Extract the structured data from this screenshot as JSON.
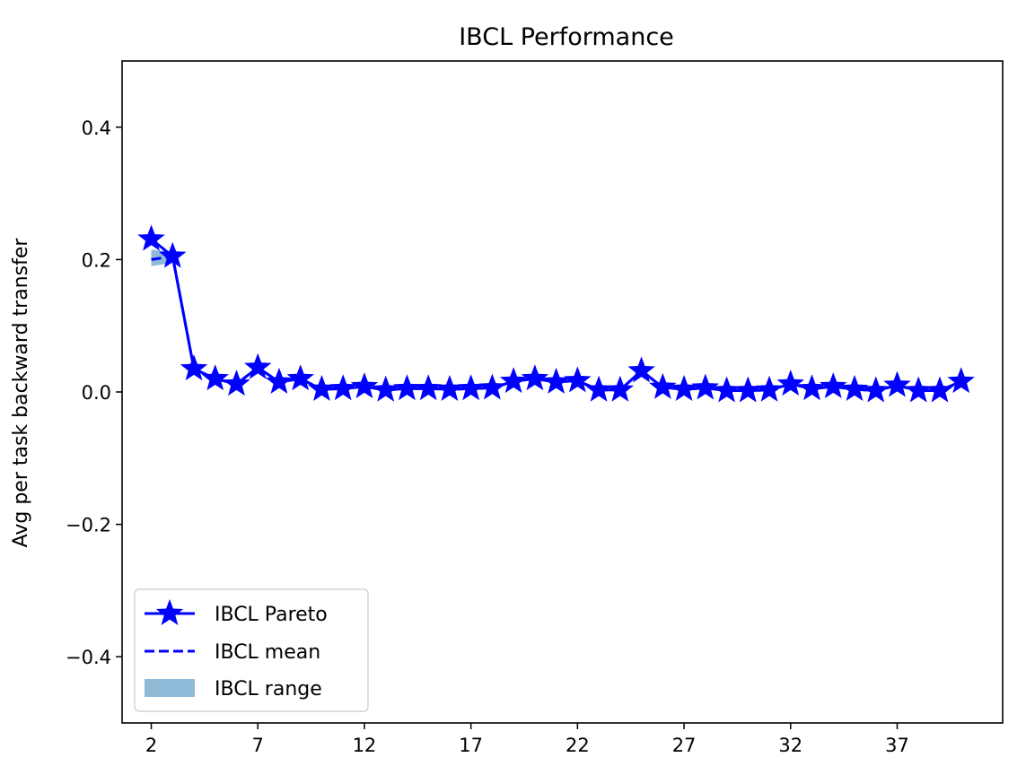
{
  "chart_data": {
    "type": "line",
    "title": "IBCL Performance",
    "xlabel": "",
    "ylabel": "Avg per task backward transfer",
    "xlim": [
      0.63,
      41.95
    ],
    "ylim": [
      -0.5,
      0.5
    ],
    "xticks": [
      2,
      7,
      12,
      17,
      22,
      27,
      32,
      37
    ],
    "yticks": [
      -0.4,
      -0.2,
      0.0,
      0.2,
      0.4
    ],
    "ytick_labels": [
      "−0.4",
      "−0.2",
      "0.0",
      "0.2",
      "0.4"
    ],
    "grid": false,
    "legend_position": "lower-left",
    "x": [
      2,
      3,
      4,
      5,
      6,
      7,
      8,
      9,
      10,
      11,
      12,
      13,
      14,
      15,
      16,
      17,
      18,
      19,
      20,
      21,
      22,
      23,
      24,
      25,
      26,
      27,
      28,
      29,
      30,
      31,
      32,
      33,
      34,
      35,
      36,
      37,
      38,
      39,
      40
    ],
    "series": [
      {
        "name": "IBCL Pareto",
        "style": "line-star",
        "color": "#0000ff",
        "values": [
          0.231,
          0.205,
          0.035,
          0.02,
          0.012,
          0.037,
          0.015,
          0.02,
          0.004,
          0.005,
          0.008,
          0.003,
          0.005,
          0.005,
          0.004,
          0.005,
          0.006,
          0.016,
          0.02,
          0.015,
          0.017,
          0.003,
          0.003,
          0.032,
          0.007,
          0.004,
          0.006,
          0.002,
          0.002,
          0.003,
          0.012,
          0.005,
          0.008,
          0.004,
          0.002,
          0.01,
          0.002,
          0.002,
          0.016
        ]
      },
      {
        "name": "IBCL mean",
        "style": "dashed",
        "color": "#0000ff",
        "values": [
          0.2,
          0.205,
          0.035,
          0.02,
          0.012,
          0.037,
          0.015,
          0.02,
          0.004,
          0.005,
          0.008,
          0.003,
          0.005,
          0.005,
          0.004,
          0.005,
          0.006,
          0.016,
          0.02,
          0.015,
          0.017,
          0.003,
          0.003,
          0.032,
          0.007,
          0.004,
          0.006,
          0.002,
          0.002,
          0.003,
          0.012,
          0.005,
          0.008,
          0.004,
          0.002,
          0.01,
          0.002,
          0.002,
          0.016
        ]
      },
      {
        "name": "IBCL range",
        "style": "band",
        "color": "#1f77b4",
        "lower": [
          0.19,
          0.195,
          0.033,
          0.018,
          0.01,
          0.035,
          0.013,
          0.018,
          0.002,
          0.003,
          0.006,
          0.001,
          0.003,
          0.003,
          0.002,
          0.003,
          0.004,
          0.014,
          0.018,
          0.013,
          0.015,
          0.001,
          0.001,
          0.03,
          0.005,
          0.002,
          0.004,
          0.0,
          0.0,
          0.001,
          0.01,
          0.003,
          0.006,
          0.002,
          0.0,
          0.008,
          0.0,
          0.0,
          0.014
        ],
        "upper": [
          0.215,
          0.212,
          0.037,
          0.022,
          0.014,
          0.039,
          0.017,
          0.022,
          0.006,
          0.007,
          0.01,
          0.005,
          0.007,
          0.007,
          0.006,
          0.007,
          0.008,
          0.018,
          0.022,
          0.017,
          0.019,
          0.005,
          0.005,
          0.034,
          0.009,
          0.006,
          0.008,
          0.004,
          0.004,
          0.005,
          0.014,
          0.007,
          0.01,
          0.006,
          0.004,
          0.012,
          0.004,
          0.004,
          0.018
        ]
      }
    ]
  }
}
